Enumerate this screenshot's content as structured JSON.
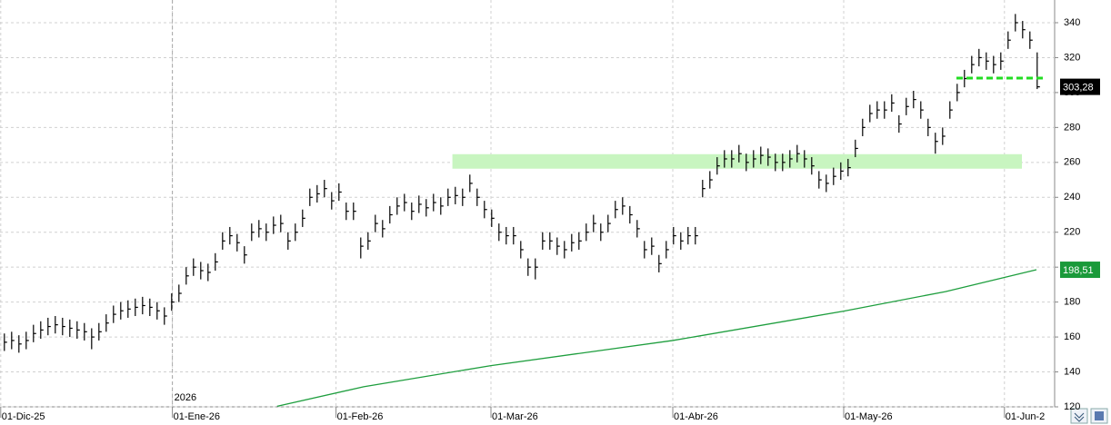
{
  "chart_data": {
    "type": "hlc",
    "xlim": [
      -0.6,
      144.4
    ],
    "xticks": [
      {
        "value": -0.5,
        "label": "01-Dic-25"
      },
      {
        "value": 23.1,
        "label": "01-Ene-26"
      },
      {
        "value": 45.6,
        "label": "01-Feb-26"
      },
      {
        "value": 66.9,
        "label": "01-Mar-26"
      },
      {
        "value": 91.9,
        "label": "01-Abr-26"
      },
      {
        "value": 115.4,
        "label": "01-May-26"
      },
      {
        "value": 137.5,
        "label": "01-Jun-2"
      }
    ],
    "ylim": [
      120,
      353
    ],
    "yticks": [
      120,
      140,
      160,
      180,
      200,
      220,
      240,
      260,
      280,
      300,
      320,
      340
    ],
    "grid": true,
    "color": "#000000",
    "year_marker": {
      "x": 23.1,
      "label": "2026"
    },
    "high": [
      162,
      163,
      161,
      163,
      167,
      169,
      171,
      172,
      171,
      170,
      169,
      168,
      165,
      168,
      173,
      178,
      180,
      181,
      182,
      183,
      182,
      180,
      177,
      185,
      190,
      200,
      205,
      203,
      202,
      208,
      220,
      223,
      219,
      212,
      225,
      227,
      225,
      229,
      230,
      220,
      225,
      233,
      245,
      247,
      250,
      243,
      248,
      237,
      237,
      217,
      220,
      230,
      227,
      235,
      240,
      242,
      237,
      241,
      239,
      242,
      240,
      245,
      246,
      245,
      253,
      245,
      238,
      233,
      225,
      223,
      223,
      215,
      205,
      205,
      220,
      220,
      217,
      215,
      219,
      220,
      225,
      230,
      225,
      230,
      238,
      240,
      235,
      227,
      215,
      217,
      207,
      215,
      223,
      220,
      223,
      223,
      250,
      255,
      263,
      267,
      267,
      270,
      265,
      267,
      269,
      268,
      265,
      265,
      267,
      270,
      267,
      263,
      255,
      253,
      257,
      260,
      262,
      273,
      285,
      293,
      295,
      295,
      299,
      287,
      297,
      301,
      295,
      285,
      277,
      280,
      295,
      305,
      313,
      321,
      325,
      323,
      321,
      323,
      335,
      345,
      341,
      335,
      323
    ],
    "low": [
      152,
      153,
      151,
      153,
      157,
      159,
      161,
      162,
      161,
      160,
      159,
      158,
      153,
      158,
      163,
      168,
      170,
      171,
      172,
      173,
      172,
      170,
      167,
      175,
      180,
      190,
      195,
      193,
      192,
      198,
      210,
      213,
      209,
      202,
      215,
      217,
      215,
      219,
      220,
      210,
      215,
      223,
      235,
      237,
      240,
      233,
      238,
      227,
      227,
      205,
      210,
      220,
      217,
      225,
      230,
      232,
      227,
      231,
      229,
      232,
      230,
      235,
      236,
      235,
      243,
      235,
      228,
      223,
      215,
      213,
      213,
      205,
      195,
      193,
      210,
      210,
      207,
      205,
      209,
      210,
      215,
      220,
      215,
      220,
      228,
      230,
      225,
      217,
      205,
      207,
      197,
      205,
      213,
      210,
      213,
      213,
      240,
      245,
      253,
      257,
      257,
      260,
      255,
      257,
      259,
      258,
      255,
      255,
      257,
      260,
      257,
      253,
      245,
      243,
      247,
      250,
      252,
      263,
      275,
      283,
      285,
      285,
      289,
      277,
      287,
      291,
      285,
      275,
      265,
      270,
      285,
      295,
      303,
      311,
      315,
      313,
      311,
      313,
      325,
      335,
      331,
      325,
      302
    ],
    "close": [
      157,
      158,
      156,
      158,
      162,
      164,
      166,
      167,
      166,
      165,
      164,
      163,
      160,
      163,
      168,
      173,
      175,
      176,
      177,
      178,
      177,
      175,
      172,
      180,
      185,
      195,
      200,
      198,
      197,
      203,
      215,
      218,
      214,
      207,
      220,
      222,
      220,
      224,
      225,
      215,
      220,
      228,
      240,
      242,
      245,
      238,
      243,
      232,
      232,
      212,
      215,
      225,
      222,
      230,
      235,
      237,
      232,
      236,
      234,
      237,
      235,
      240,
      241,
      240,
      248,
      240,
      233,
      228,
      220,
      218,
      218,
      210,
      200,
      200,
      215,
      215,
      212,
      210,
      214,
      215,
      220,
      225,
      220,
      225,
      233,
      235,
      230,
      222,
      210,
      212,
      202,
      210,
      218,
      215,
      218,
      218,
      245,
      250,
      258,
      262,
      262,
      265,
      260,
      262,
      264,
      263,
      260,
      260,
      262,
      265,
      262,
      258,
      250,
      248,
      252,
      255,
      257,
      268,
      280,
      288,
      290,
      290,
      294,
      282,
      292,
      296,
      290,
      280,
      272,
      275,
      290,
      300,
      308,
      316,
      320,
      318,
      316,
      318,
      330,
      340,
      336,
      330,
      303.28
    ],
    "close_label": "303,28",
    "moving_average": {
      "color": "#1e9e3e",
      "x": [
        37.5,
        49.4,
        66.9,
        91.9,
        115.4,
        129.4,
        141.9
      ],
      "values": [
        120.3,
        131.5,
        143.6,
        158,
        174.8,
        186,
        198.51
      ],
      "last_label": "198,51"
    },
    "zone": {
      "color": "#c8f5c0",
      "x": [
        61.6,
        139.9
      ],
      "y": [
        256.4,
        264.7
      ]
    },
    "level": {
      "color": "#22dd22",
      "x": [
        130.9,
        143.1
      ],
      "value": 308.3
    }
  }
}
